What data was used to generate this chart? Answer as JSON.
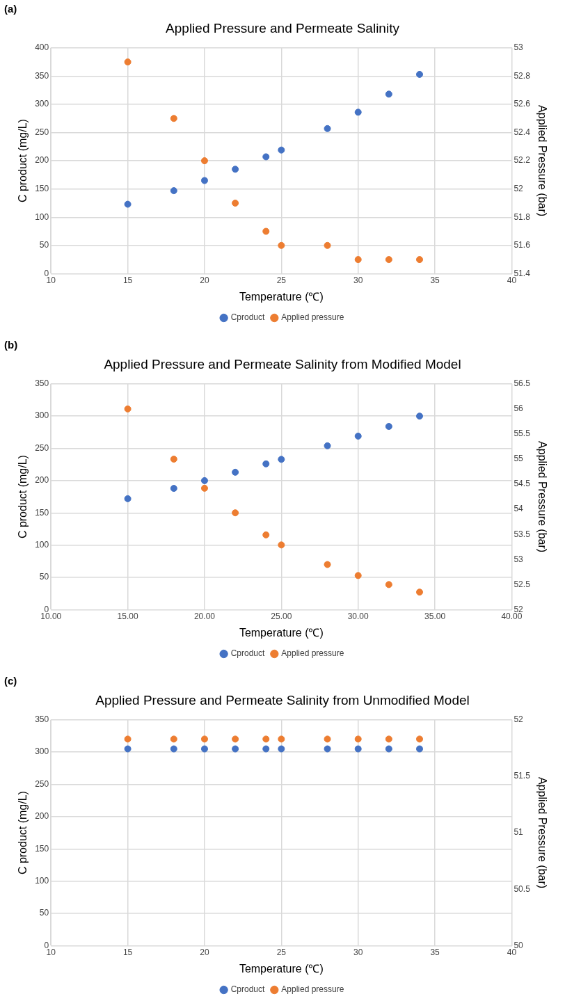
{
  "chart_data": [
    {
      "type": "scatter",
      "title": "Applied Pressure and Permeate Salinity",
      "annotations": [
        "(a)"
      ],
      "xlabel": "Temperature (℃)",
      "ylabel": "C product (mg/L)",
      "y2label": "Applied Pressure (bar)",
      "x": [
        15,
        18,
        20,
        22,
        24,
        25,
        28,
        30,
        32,
        34
      ],
      "series": [
        {
          "name": "Cproduct",
          "color": "#4472c4",
          "values": [
            123,
            147,
            165,
            185,
            207,
            219,
            257,
            286,
            318,
            353
          ]
        },
        {
          "name": "Applied pressure",
          "color": "#ed7d31",
          "axis": "y2",
          "values": [
            52.9,
            52.5,
            52.2,
            51.9,
            51.7,
            51.6,
            51.6,
            51.5,
            51.5,
            51.5
          ]
        }
      ],
      "xlim": [
        10,
        40
      ],
      "xticks": [
        10,
        15,
        20,
        25,
        30,
        35,
        40
      ],
      "ylim": [
        0,
        400
      ],
      "yticks": [
        0,
        50,
        100,
        150,
        200,
        250,
        300,
        350,
        400
      ],
      "y2lim": [
        51.4,
        53
      ],
      "y2ticks": [
        51.4,
        51.6,
        51.8,
        52,
        52.2,
        52.4,
        52.6,
        52.8,
        53
      ],
      "grid": true,
      "legend": "bottom",
      "marker": "circle"
    },
    {
      "type": "scatter",
      "title": "Applied Pressure and Permeate Salinity from Modified Model",
      "annotations": [
        "(b)"
      ],
      "xlabel": "Temperature (℃)",
      "ylabel": "C product (mg/L)",
      "y2label": "Applied Pressure (bar)",
      "x": [
        15,
        18,
        20,
        22,
        24,
        25,
        28,
        30,
        32,
        34
      ],
      "series": [
        {
          "name": "Cproduct",
          "color": "#4472c4",
          "values": [
            172,
            188,
            200,
            213,
            226,
            233,
            254,
            269,
            284,
            300
          ]
        },
        {
          "name": "Applied pressure",
          "color": "#ed7d31",
          "axis": "y2",
          "values": [
            56.0,
            55.0,
            54.42,
            53.93,
            53.49,
            53.29,
            52.9,
            52.68,
            52.5,
            52.35
          ]
        }
      ],
      "xlim": [
        10,
        40
      ],
      "xticks": [
        {
          "value": 10,
          "label": "10.00"
        },
        {
          "value": 15,
          "label": "15.00"
        },
        {
          "value": 20,
          "label": "20.00"
        },
        {
          "value": 25,
          "label": "25.00"
        },
        {
          "value": 30,
          "label": "30.00"
        },
        {
          "value": 35,
          "label": "35.00"
        },
        {
          "value": 40,
          "label": "40.00"
        }
      ],
      "ylim": [
        0,
        350
      ],
      "yticks": [
        0,
        50,
        100,
        150,
        200,
        250,
        300,
        350
      ],
      "y2lim": [
        52,
        56.5
      ],
      "y2ticks": [
        52,
        52.5,
        53,
        53.5,
        54,
        54.5,
        55,
        55.5,
        56,
        56.5
      ],
      "grid": true,
      "legend": "bottom",
      "marker": "circle"
    },
    {
      "type": "scatter",
      "title": "Applied Pressure and Permeate Salinity from Unmodified Model",
      "annotations": [
        "(c)"
      ],
      "xlabel": "Temperature (℃)",
      "ylabel": "C product (mg/L)",
      "y2label": "Applied Pressure (bar)",
      "x": [
        15,
        18,
        20,
        22,
        24,
        25,
        28,
        30,
        32,
        34
      ],
      "series": [
        {
          "name": "Cproduct",
          "color": "#4472c4",
          "values": [
            305,
            305,
            305,
            305,
            305,
            305,
            305,
            305,
            305,
            305
          ]
        },
        {
          "name": "Applied pressure",
          "color": "#ed7d31",
          "axis": "y2",
          "values": [
            51.83,
            51.83,
            51.83,
            51.83,
            51.83,
            51.83,
            51.83,
            51.83,
            51.83,
            51.83
          ]
        }
      ],
      "xlim": [
        10,
        40
      ],
      "xticks": [
        10,
        15,
        20,
        25,
        30,
        35,
        40
      ],
      "ylim": [
        0,
        350
      ],
      "yticks": [
        0,
        50,
        100,
        150,
        200,
        250,
        300,
        350
      ],
      "y2lim": [
        50,
        52
      ],
      "y2ticks": [
        50,
        50.5,
        51,
        51.5,
        52
      ],
      "grid": true,
      "legend": "bottom",
      "marker": "circle"
    }
  ]
}
